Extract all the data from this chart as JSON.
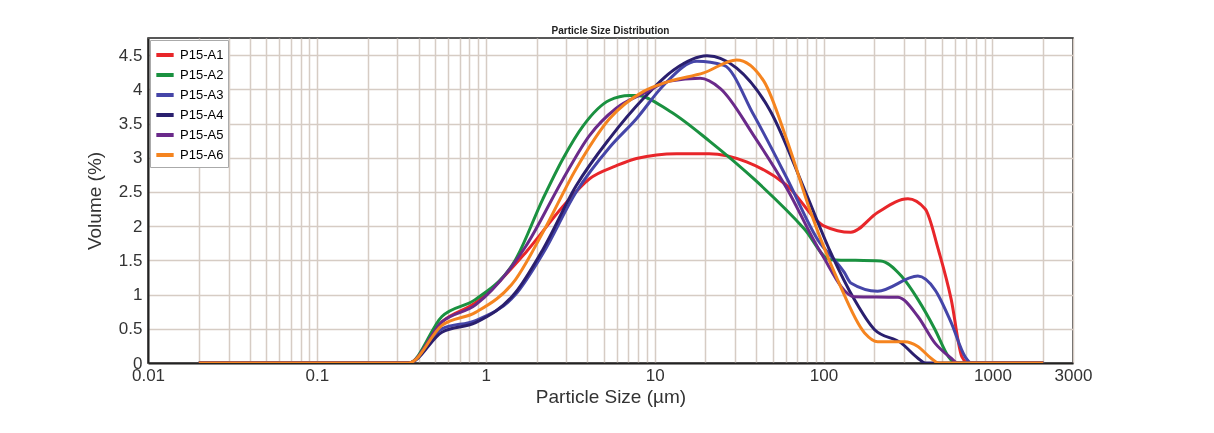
{
  "chart_data": {
    "type": "line",
    "title": "Particle Size Distribution",
    "xlabel": "Particle Size (µm)",
    "ylabel": "Volume (%)",
    "log": "x",
    "grid": true,
    "legend": "top left",
    "line_style": "solid",
    "xlim": [
      0.01,
      3000
    ],
    "ylim": [
      0,
      4.75
    ],
    "xticks": [
      0.01,
      {
        "value": 0.02,
        "label": null
      },
      {
        "value": 0.03,
        "label": null
      },
      {
        "value": 0.04,
        "label": null
      },
      {
        "value": 0.05,
        "label": null
      },
      {
        "value": 0.06,
        "label": null
      },
      {
        "value": 0.07,
        "label": null
      },
      {
        "value": 0.08,
        "label": null
      },
      {
        "value": 0.09,
        "label": null
      },
      0.1,
      {
        "value": 0.2,
        "label": null
      },
      {
        "value": 0.3,
        "label": null
      },
      {
        "value": 0.4,
        "label": null
      },
      {
        "value": 0.5,
        "label": null
      },
      {
        "value": 0.6,
        "label": null
      },
      {
        "value": 0.7,
        "label": null
      },
      {
        "value": 0.8,
        "label": null
      },
      {
        "value": 0.9,
        "label": null
      },
      1,
      {
        "value": 2,
        "label": null
      },
      {
        "value": 3,
        "label": null
      },
      {
        "value": 4,
        "label": null
      },
      {
        "value": 5,
        "label": null
      },
      {
        "value": 6,
        "label": null
      },
      {
        "value": 7,
        "label": null
      },
      {
        "value": 8,
        "label": null
      },
      {
        "value": 9,
        "label": null
      },
      10,
      {
        "value": 20,
        "label": null
      },
      {
        "value": 30,
        "label": null
      },
      {
        "value": 40,
        "label": null
      },
      {
        "value": 50,
        "label": null
      },
      {
        "value": 60,
        "label": null
      },
      {
        "value": 70,
        "label": null
      },
      {
        "value": 80,
        "label": null
      },
      {
        "value": 90,
        "label": null
      },
      100,
      {
        "value": 200,
        "label": null
      },
      {
        "value": 300,
        "label": null
      },
      {
        "value": 400,
        "label": null
      },
      {
        "value": 500,
        "label": null
      },
      {
        "value": 600,
        "label": null
      },
      {
        "value": 700,
        "label": null
      },
      {
        "value": 800,
        "label": null
      },
      {
        "value": 900,
        "label": null
      },
      1000,
      {
        "value": 2000,
        "label": null
      },
      3000
    ],
    "yticks": [
      0,
      0.5,
      1,
      1.5,
      2,
      2.5,
      3,
      3.5,
      4,
      4.5
    ],
    "series": [
      {
        "name": "P15-A1",
        "color": "#e8262a",
        "x": [
          0.02,
          0.35,
          0.55,
          0.87,
          1.73,
          2.87,
          4.1,
          5.9,
          7.8,
          13.5,
          21,
          35,
          61,
          101,
          145,
          209,
          316,
          400,
          478,
          570,
          660,
          720,
          2000
        ],
        "values": [
          0,
          0,
          0.6,
          0.88,
          1.62,
          2.29,
          2.69,
          2.88,
          2.99,
          3.06,
          3.06,
          2.94,
          2.59,
          2.0,
          1.91,
          2.2,
          2.4,
          2.25,
          1.66,
          0.93,
          0.09,
          0,
          0
        ]
      },
      {
        "name": "P15-A2",
        "color": "#1a9140",
        "x": [
          0.02,
          0.35,
          0.55,
          0.87,
          1.5,
          2.18,
          2.87,
          3.78,
          5.4,
          7.1,
          7.8,
          12.3,
          21.2,
          38.7,
          77,
          110,
          218,
          289,
          362,
          457,
          550,
          600,
          2000
        ],
        "values": [
          0,
          0,
          0.68,
          0.93,
          1.51,
          2.4,
          2.99,
          3.47,
          3.84,
          3.91,
          3.91,
          3.68,
          3.24,
          2.69,
          1.96,
          1.51,
          1.49,
          1.27,
          0.93,
          0.49,
          0.09,
          0,
          0
        ]
      },
      {
        "name": "P15-A3",
        "color": "#4545a8",
        "x": [
          0.02,
          0.35,
          0.55,
          0.87,
          1.5,
          2.18,
          3.43,
          5.4,
          7.8,
          11.3,
          17.8,
          25.7,
          38.7,
          61,
          92,
          133,
          145,
          209,
          362,
          457,
          570,
          690,
          750,
          2000
        ],
        "values": [
          0,
          0,
          0.5,
          0.62,
          1.0,
          1.6,
          2.5,
          3.15,
          3.57,
          4.06,
          4.41,
          4.35,
          3.62,
          2.69,
          1.81,
          1.32,
          1.17,
          1.05,
          1.27,
          1.07,
          0.59,
          0.09,
          0,
          0
        ]
      },
      {
        "name": "P15-A4",
        "color": "#2a1f6e",
        "x": [
          0.02,
          0.35,
          0.55,
          0.87,
          1.5,
          2.18,
          3.43,
          5.4,
          8.6,
          12.9,
          20.4,
          30.6,
          48.5,
          77,
          110,
          152,
          200,
          289,
          362,
          400,
          2000
        ],
        "values": [
          0,
          0,
          0.45,
          0.59,
          1.03,
          1.66,
          2.59,
          3.28,
          3.87,
          4.28,
          4.49,
          4.31,
          3.68,
          2.54,
          1.62,
          0.93,
          0.49,
          0.29,
          0.07,
          0,
          0
        ]
      },
      {
        "name": "P15-A5",
        "color": "#6a2a8a",
        "x": [
          0.02,
          0.35,
          0.55,
          0.87,
          1.73,
          2.87,
          4.1,
          5.9,
          8.6,
          12.3,
          18.6,
          24.5,
          38.7,
          61,
          96,
          152,
          276,
          362,
          457,
          570,
          620,
          2000
        ],
        "values": [
          0,
          0,
          0.6,
          0.85,
          1.71,
          2.69,
          3.32,
          3.72,
          3.94,
          4.12,
          4.16,
          4.01,
          3.32,
          2.54,
          1.62,
          0.97,
          0.96,
          0.68,
          0.29,
          0.07,
          0,
          0
        ]
      },
      {
        "name": "P15-A6",
        "color": "#f5841f",
        "x": [
          0.02,
          0.35,
          0.55,
          0.87,
          1.5,
          2.18,
          3.43,
          5.4,
          8.6,
          12.3,
          19.5,
          30.6,
          44.3,
          61,
          84,
          121,
          175,
          209,
          303,
          362,
          433,
          480,
          2000
        ],
        "values": [
          0,
          0,
          0.55,
          0.74,
          1.22,
          1.91,
          2.84,
          3.57,
          3.97,
          4.12,
          4.24,
          4.43,
          4.12,
          3.24,
          2.2,
          1.22,
          0.44,
          0.31,
          0.31,
          0.24,
          0.07,
          0,
          0
        ]
      }
    ]
  }
}
